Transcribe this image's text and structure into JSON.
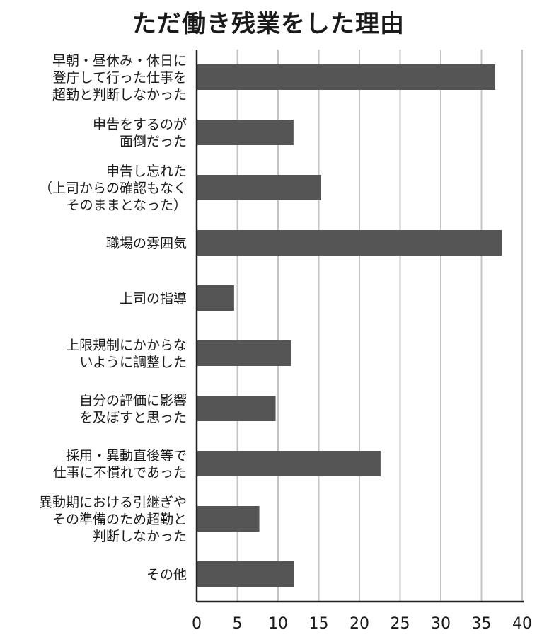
{
  "chart_data": {
    "type": "bar",
    "orientation": "horizontal",
    "title": "ただ働き残業をした理由",
    "xlabel": "",
    "ylabel": "",
    "xlim": [
      0,
      40
    ],
    "x_ticks": [
      0,
      5,
      10,
      15,
      20,
      25,
      30,
      35,
      40
    ],
    "grid": true,
    "categories": [
      [
        "早朝・昼休み・休日に",
        "登庁して行った仕事を",
        "超勤と判断しなかった"
      ],
      [
        "申告をするのが",
        "面倒だった"
      ],
      [
        "申告し忘れた",
        "（上司からの確認もなく",
        "そのままとなった）"
      ],
      [
        "職場の雰囲気"
      ],
      [
        "上司の指導"
      ],
      [
        "上限規制にかからな",
        "いように調整した"
      ],
      [
        "自分の評価に影響",
        "を及ぼすと思った"
      ],
      [
        "採用・異動直後等で",
        "仕事に不慣れであった"
      ],
      [
        "異動期における引継ぎや",
        "その準備のため超勤と",
        "判断しなかった"
      ],
      [
        "その他"
      ]
    ],
    "values": [
      36.7,
      11.9,
      15.3,
      37.5,
      4.6,
      11.6,
      9.7,
      22.6,
      7.7,
      12.0
    ],
    "colors": {
      "bar": "#555555",
      "grid": "#c4c4c4",
      "axis": "#222222"
    }
  }
}
